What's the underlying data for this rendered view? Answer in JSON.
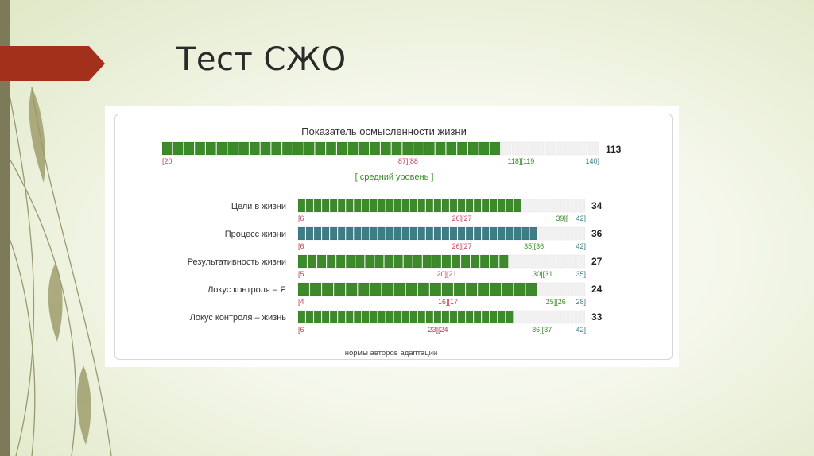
{
  "slide": {
    "title": "Тест СЖО"
  },
  "colors": {
    "accent_red": "#a3301a",
    "side_band": "#7c7a58",
    "bar_green": "#3c8a2a",
    "bar_teal": "#3d7d85",
    "bar_empty": "#f1f1f1",
    "label_red": "#c0445a",
    "label_green": "#3b8a2c",
    "label_teal": "#3d7d85"
  },
  "chart_data": {
    "type": "bar",
    "title": "Показатель осмысленности жизни",
    "footnote": "нормы авторов адаптации",
    "main": {
      "value": 113,
      "range": [
        20,
        140
      ],
      "segments": 40,
      "level_label": "[ средний уровень ]",
      "thresholds": [
        {
          "text": "[20",
          "at": 20,
          "color": "red"
        },
        {
          "text": "87][88",
          "at": 87.5,
          "color": "red"
        },
        {
          "text": "118][119",
          "at": 118.5,
          "color": "green"
        },
        {
          "text": "140]",
          "at": 140,
          "color": "teal"
        }
      ]
    },
    "scales": [
      {
        "label": "Цели в жизни",
        "value": 34,
        "range": [
          6,
          42
        ],
        "color": "green",
        "thresholds": [
          {
            "text": "[6",
            "at": 6,
            "color": "red"
          },
          {
            "text": "26][27",
            "at": 26.5,
            "color": "red"
          },
          {
            "text": "39][",
            "at": 39,
            "color": "green"
          },
          {
            "text": "42]",
            "at": 42,
            "color": "teal"
          }
        ]
      },
      {
        "label": "Процесс жизни",
        "value": 36,
        "range": [
          6,
          42
        ],
        "color": "teal",
        "thresholds": [
          {
            "text": "[6",
            "at": 6,
            "color": "red"
          },
          {
            "text": "26][27",
            "at": 26.5,
            "color": "red"
          },
          {
            "text": "35][36",
            "at": 35.5,
            "color": "green"
          },
          {
            "text": "42]",
            "at": 42,
            "color": "teal"
          }
        ]
      },
      {
        "label": "Результативность жизни",
        "value": 27,
        "range": [
          5,
          35
        ],
        "color": "green",
        "thresholds": [
          {
            "text": "[5",
            "at": 5,
            "color": "red"
          },
          {
            "text": "20][21",
            "at": 20.5,
            "color": "red"
          },
          {
            "text": "30][31",
            "at": 30.5,
            "color": "green"
          },
          {
            "text": "35]",
            "at": 35,
            "color": "teal"
          }
        ]
      },
      {
        "label": "Локус контроля – Я",
        "value": 24,
        "range": [
          4,
          28
        ],
        "color": "green",
        "thresholds": [
          {
            "text": "[4",
            "at": 4,
            "color": "red"
          },
          {
            "text": "16][17",
            "at": 16.5,
            "color": "red"
          },
          {
            "text": "25][26",
            "at": 25.5,
            "color": "green"
          },
          {
            "text": "28]",
            "at": 28,
            "color": "teal"
          }
        ]
      },
      {
        "label": "Локус контроля – жизнь",
        "value": 33,
        "range": [
          6,
          42
        ],
        "color": "green",
        "thresholds": [
          {
            "text": "[6",
            "at": 6,
            "color": "red"
          },
          {
            "text": "23][24",
            "at": 23.5,
            "color": "red"
          },
          {
            "text": "36][37",
            "at": 36.5,
            "color": "green"
          },
          {
            "text": "42]",
            "at": 42,
            "color": "teal"
          }
        ]
      }
    ]
  }
}
